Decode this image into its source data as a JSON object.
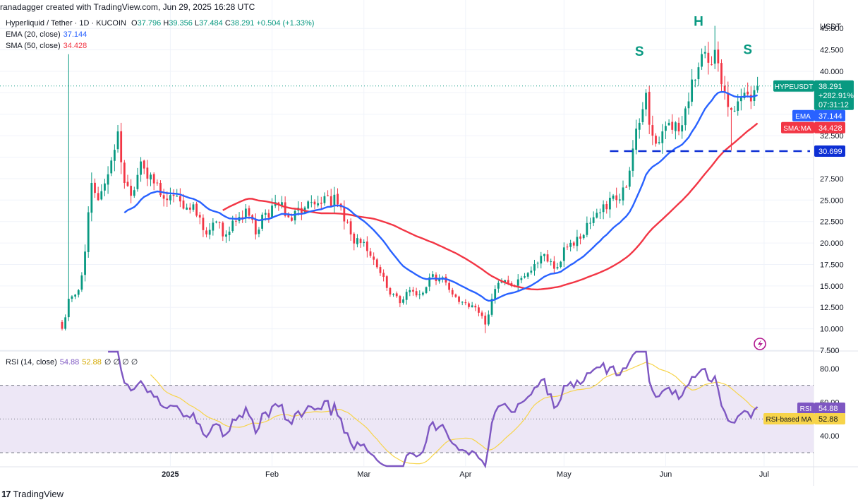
{
  "credit": "ranadagger created with TradingView.com, Jun 29, 2025 16:28 UTC",
  "brand": "TradingView",
  "brand_logo": "17",
  "legend": {
    "symbol": "Hyperliquid / Tether · 1D · KUCOIN",
    "ohlc": [
      {
        "k": "O",
        "v": "37.796"
      },
      {
        "k": "H",
        "v": "39.356"
      },
      {
        "k": "L",
        "v": "37.484"
      },
      {
        "k": "C",
        "v": "38.291"
      }
    ],
    "change": "+0.504 (+1.33%)",
    "ema_label": "EMA (20, close)",
    "ema_value": "37.144",
    "sma_label": "SMA (50, close)",
    "sma_value": "34.428",
    "rsi_label": "RSI (14, close)",
    "rsi_value": "54.88",
    "rsi_ma_value": "52.88",
    "rsi_extra": "∅ ∅ ∅ ∅"
  },
  "colors": {
    "up": "#089981",
    "down": "#f23645",
    "ema": "#2962ff",
    "sma": "#f23645",
    "rsi": "#7e57c2",
    "rsi_ma": "#f7d44a",
    "rsi_band": "#ede7f6",
    "support_line": "#0d2fd4",
    "pattern_text": "#089981"
  },
  "chart_data": [
    {
      "type": "candlestick",
      "title": "Hyperliquid / Tether · 1D · KUCOIN",
      "currency": "USDT",
      "ylim": [
        7.5,
        46.5
      ],
      "ytick_labels": [
        "7.500",
        "10.000",
        "12.500",
        "15.000",
        "17.500",
        "20.000",
        "22.500",
        "25.000",
        "27.500",
        "30.000",
        "32.500",
        "35.000",
        "37.500",
        "40.000",
        "42.500",
        "45.000"
      ],
      "yticks": [
        7.5,
        10,
        12.5,
        15,
        17.5,
        20,
        22.5,
        25,
        27.5,
        30,
        32.5,
        35,
        37.5,
        40,
        42.5,
        45
      ],
      "x_domain": [
        "2024-11-29",
        "2025-07-15"
      ],
      "xtick_labels": [
        "2025",
        "Feb",
        "Mar",
        "Apr",
        "May",
        "Jun",
        "Jul"
      ],
      "xticks": [
        "2025-01-01",
        "2025-02-01",
        "2025-03-01",
        "2025-04-01",
        "2025-05-01",
        "2025-06-01",
        "2025-07-01"
      ],
      "grid": true,
      "anchors": [
        [
          "2024-11-29",
          10.0
        ],
        [
          "2024-12-01",
          13.5
        ],
        [
          "2024-12-04",
          14.5
        ],
        [
          "2024-12-06",
          19.0
        ],
        [
          "2024-12-08",
          27.0
        ],
        [
          "2024-12-10",
          25.0
        ],
        [
          "2024-12-13",
          28.0
        ],
        [
          "2024-12-16",
          33.0
        ],
        [
          "2024-12-18",
          27.0
        ],
        [
          "2024-12-20",
          25.5
        ],
        [
          "2024-12-23",
          29.5
        ],
        [
          "2024-12-25",
          27.5
        ],
        [
          "2024-12-28",
          27.0
        ],
        [
          "2024-12-31",
          25.0
        ],
        [
          "2025-01-03",
          25.5
        ],
        [
          "2025-01-05",
          24.0
        ],
        [
          "2025-01-08",
          24.5
        ],
        [
          "2025-01-11",
          21.5
        ],
        [
          "2025-01-15",
          22.5
        ],
        [
          "2025-01-18",
          21.0
        ],
        [
          "2025-01-21",
          22.5
        ],
        [
          "2025-01-24",
          24.0
        ],
        [
          "2025-01-27",
          21.0
        ],
        [
          "2025-01-30",
          23.5
        ],
        [
          "2025-02-03",
          24.5
        ],
        [
          "2025-02-06",
          23.0
        ],
        [
          "2025-02-10",
          23.5
        ],
        [
          "2025-02-14",
          24.5
        ],
        [
          "2025-02-18",
          25.5
        ],
        [
          "2025-02-21",
          24.5
        ],
        [
          "2025-02-25",
          21.0
        ],
        [
          "2025-02-28",
          20.0
        ],
        [
          "2025-03-03",
          18.5
        ],
        [
          "2025-03-06",
          16.5
        ],
        [
          "2025-03-09",
          14.0
        ],
        [
          "2025-03-12",
          13.0
        ],
        [
          "2025-03-15",
          14.5
        ],
        [
          "2025-03-18",
          14.0
        ],
        [
          "2025-03-21",
          16.0
        ],
        [
          "2025-03-25",
          16.0
        ],
        [
          "2025-03-28",
          14.0
        ],
        [
          "2025-04-01",
          13.0
        ],
        [
          "2025-04-04",
          12.5
        ],
        [
          "2025-04-07",
          10.5
        ],
        [
          "2025-04-09",
          13.5
        ],
        [
          "2025-04-12",
          15.5
        ],
        [
          "2025-04-16",
          15.0
        ],
        [
          "2025-04-20",
          16.5
        ],
        [
          "2025-04-24",
          18.5
        ],
        [
          "2025-04-28",
          17.0
        ],
        [
          "2025-05-02",
          19.5
        ],
        [
          "2025-05-06",
          20.5
        ],
        [
          "2025-05-10",
          23.0
        ],
        [
          "2025-05-13",
          24.5
        ],
        [
          "2025-05-17",
          25.0
        ],
        [
          "2025-05-20",
          26.5
        ],
        [
          "2025-05-22",
          31.0
        ],
        [
          "2025-05-24",
          34.0
        ],
        [
          "2025-05-26",
          37.5
        ],
        [
          "2025-05-28",
          32.5
        ],
        [
          "2025-05-31",
          33.0
        ],
        [
          "2025-06-02",
          34.0
        ],
        [
          "2025-06-05",
          33.0
        ],
        [
          "2025-06-08",
          36.5
        ],
        [
          "2025-06-10",
          39.0
        ],
        [
          "2025-06-12",
          42.0
        ],
        [
          "2025-06-14",
          41.0
        ],
        [
          "2025-06-16",
          42.5
        ],
        [
          "2025-06-18",
          38.5
        ],
        [
          "2025-06-21",
          35.5
        ],
        [
          "2025-06-23",
          36.5
        ],
        [
          "2025-06-25",
          37.5
        ],
        [
          "2025-06-27",
          36.5
        ],
        [
          "2025-06-28",
          37.8
        ],
        [
          "2025-06-29",
          38.291
        ]
      ],
      "series": [
        {
          "kind": "ema",
          "period": 20,
          "label": "EMA",
          "value": "37.144"
        },
        {
          "kind": "sma",
          "period": 50,
          "label": "SMA:MA",
          "value": "34.428"
        }
      ],
      "price_label": {
        "name": "HYPEUSDT",
        "value": "38.291",
        "change": "+282.91%",
        "countdown": "07:31:12"
      },
      "support": {
        "value": 30.699,
        "label": "30.699",
        "from": "2025-05-15",
        "to": "2025-07-01"
      },
      "annotations": [
        {
          "text": "S",
          "x": "2025-05-24",
          "y": 41.8
        },
        {
          "text": "H",
          "x": "2025-06-11",
          "y": 45.3
        },
        {
          "text": "S",
          "x": "2025-06-26",
          "y": 42.0
        }
      ]
    },
    {
      "type": "line",
      "title": "RSI (14, close)",
      "ylim": [
        22,
        90
      ],
      "yticks": [
        40,
        60,
        80
      ],
      "ytick_labels": [
        "40.00",
        "60.00",
        "80.00"
      ],
      "band": [
        30,
        70
      ],
      "series": [
        {
          "name": "RSI",
          "value": "54.88"
        },
        {
          "name": "RSI-based MA",
          "value": "52.88"
        }
      ]
    }
  ]
}
